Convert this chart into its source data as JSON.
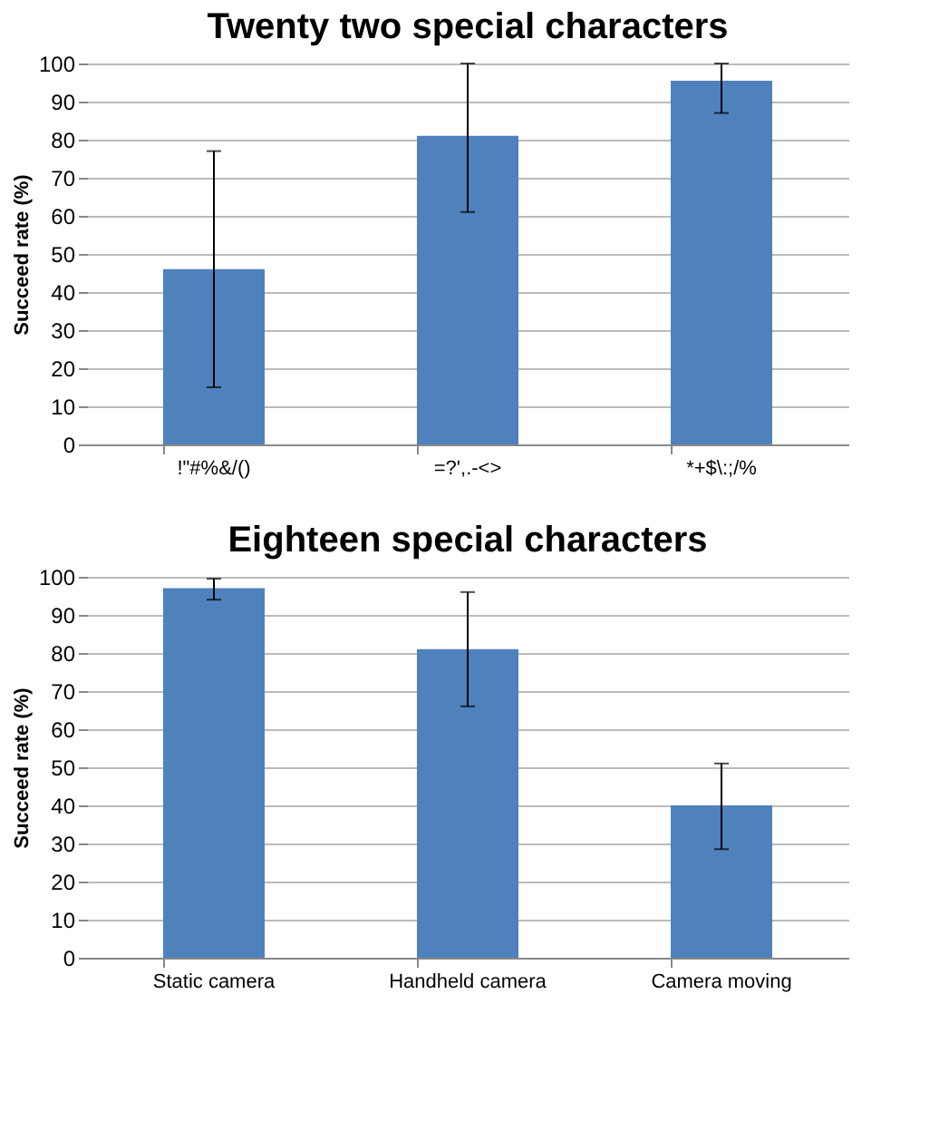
{
  "chart_data": [
    {
      "type": "bar",
      "title": "Twenty two special characters",
      "ylabel": "Succeed rate  (%)",
      "categories": [
        "!\"#%&/()",
        "=?',.-<>",
        "*+$\\:;/%"
      ],
      "values": [
        46,
        81,
        95.5
      ],
      "errors": [
        [
          15,
          77
        ],
        [
          61,
          100
        ],
        [
          87,
          100
        ]
      ],
      "color": "#4f81bd",
      "ylim": [
        0,
        100
      ],
      "yticks": [
        0,
        10,
        20,
        30,
        40,
        50,
        60,
        70,
        80,
        90,
        100
      ],
      "grid": "y"
    },
    {
      "type": "bar",
      "title": "Eighteen special characters",
      "ylabel": "Succeed rate  (%)",
      "categories": [
        "Static camera",
        "Handheld camera",
        "Camera moving"
      ],
      "values": [
        97,
        81,
        40
      ],
      "errors": [
        [
          94,
          99.5
        ],
        [
          66,
          96
        ],
        [
          28.5,
          51
        ]
      ],
      "color": "#4f81bd",
      "ylim": [
        0,
        100
      ],
      "yticks": [
        0,
        10,
        20,
        30,
        40,
        50,
        60,
        70,
        80,
        90,
        100
      ],
      "grid": "y"
    }
  ]
}
